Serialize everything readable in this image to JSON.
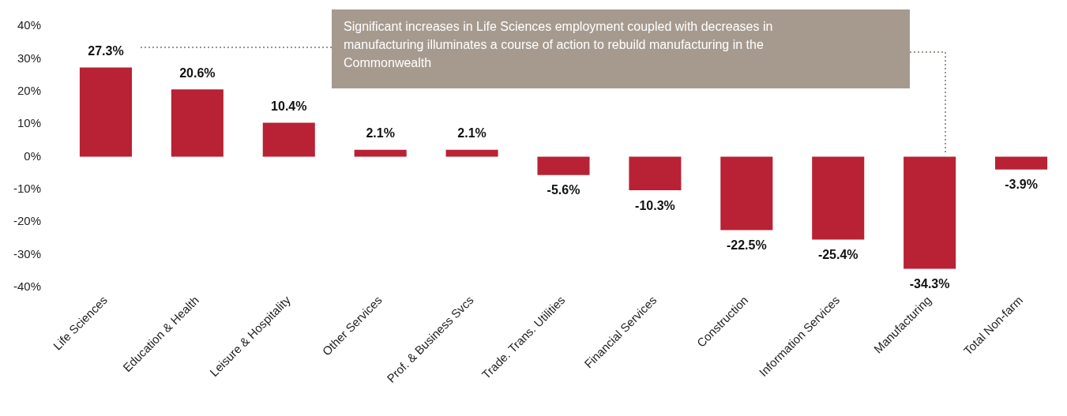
{
  "chart_data": {
    "type": "bar",
    "categories": [
      "Life Sciences",
      "Education & Health",
      "Leisure & Hospitality",
      "Other Services",
      "Prof. & Business Svcs",
      "Trade. Trans. Utilities",
      "Financial Services",
      "Construction",
      "Information Services",
      "Manufacturing",
      "Total Non-farm"
    ],
    "values": [
      27.3,
      20.6,
      10.4,
      2.1,
      2.1,
      -5.6,
      -10.3,
      -22.5,
      -25.4,
      -34.3,
      -3.9
    ],
    "color": "#b82234",
    "ylim": [
      -40,
      40
    ],
    "yticks": [
      {
        "value": -40,
        "label": "-40%"
      },
      {
        "value": -30,
        "label": "-30%"
      },
      {
        "value": -20,
        "label": "-20%"
      },
      {
        "value": -10,
        "label": "-10%"
      },
      {
        "value": 0,
        "label": "0%"
      },
      {
        "value": 10,
        "label": "10%"
      },
      {
        "value": 20,
        "label": "20%"
      },
      {
        "value": 30,
        "label": "30%"
      },
      {
        "value": 40,
        "label": "40%"
      }
    ],
    "value_labels": [
      "27.3%",
      "20.6%",
      "10.4%",
      "2.1%",
      "2.1%",
      "-5.6%",
      "-10.3%",
      "-22.5%",
      "-25.4%",
      "-34.3%",
      "-3.9%"
    ],
    "grid": false,
    "legend": false,
    "annotations": [
      "Significant increases in Life Sciences employment coupled with decreases in manufacturing illuminates a course of action to rebuild manufacturing in the Commonwealth"
    ]
  }
}
